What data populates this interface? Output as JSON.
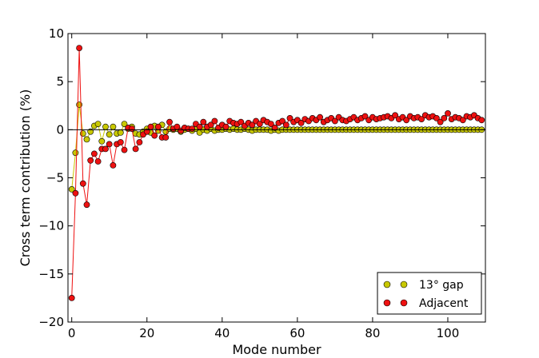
{
  "chart_data": {
    "type": "scatter",
    "xlabel": "Mode number",
    "ylabel": "Cross term contribution (%)",
    "xlim": [
      -1,
      110
    ],
    "ylim": [
      -20,
      10
    ],
    "xticks": [
      0,
      20,
      40,
      60,
      80,
      100
    ],
    "yticks": [
      -20,
      -15,
      -10,
      -5,
      0,
      5,
      10
    ],
    "xtick_labels": [
      "0",
      "20",
      "40",
      "60",
      "80",
      "100"
    ],
    "ytick_labels": [
      "−20",
      "−15",
      "−10",
      "−5",
      "0",
      "5",
      "10"
    ],
    "legend_position": "lower-right",
    "grid": false,
    "series": [
      {
        "name": "13° gap",
        "color": "#c8c800",
        "line": false,
        "x": [
          0,
          1,
          2,
          3,
          4,
          5,
          6,
          7,
          8,
          9,
          10,
          11,
          12,
          13,
          14,
          15,
          16,
          17,
          18,
          19,
          20,
          21,
          22,
          23,
          24,
          25,
          26,
          27,
          28,
          29,
          30,
          31,
          32,
          33,
          34,
          35,
          36,
          37,
          38,
          39,
          40,
          41,
          42,
          43,
          44,
          45,
          46,
          47,
          48,
          49,
          50,
          51,
          52,
          53,
          54,
          55,
          56,
          57,
          58,
          59,
          60,
          61,
          62,
          63,
          64,
          65,
          66,
          67,
          68,
          69,
          70,
          71,
          72,
          73,
          74,
          75,
          76,
          77,
          78,
          79,
          80,
          81,
          82,
          83,
          84,
          85,
          86,
          87,
          88,
          89,
          90,
          91,
          92,
          93,
          94,
          95,
          96,
          97,
          98,
          99,
          100,
          101,
          102,
          103,
          104,
          105,
          106,
          107,
          108,
          109
        ],
        "y": [
          -6.2,
          -2.4,
          2.6,
          -0.4,
          -1.0,
          -0.2,
          0.4,
          0.6,
          -1.2,
          0.3,
          -0.5,
          0.3,
          -0.4,
          -0.3,
          0.6,
          0.1,
          0.3,
          -0.4,
          -0.5,
          -0.2,
          0.1,
          -0.3,
          0.4,
          -0.1,
          0.5,
          -0.2,
          0.1,
          0.0,
          0.1,
          -0.2,
          0.0,
          0.1,
          -0.1,
          0.1,
          -0.3,
          0.0,
          -0.1,
          0.1,
          -0.1,
          0.0,
          0.0,
          0.1,
          0.0,
          0.1,
          0.0,
          0.0,
          0.1,
          0.0,
          -0.1,
          0.0,
          0.0,
          0.0,
          0.0,
          -0.1,
          0.0,
          -0.1,
          0.0,
          0.0,
          0.0,
          0.0,
          0.0,
          0.0,
          0.0,
          0.0,
          0.0,
          0.0,
          0.0,
          0.0,
          0.0,
          0.0,
          0.0,
          0.0,
          0.0,
          0.0,
          0.0,
          0.0,
          0.0,
          0.0,
          0.0,
          0.0,
          0.0,
          0.0,
          0.0,
          0.0,
          0.0,
          0.0,
          0.0,
          0.0,
          0.0,
          0.0,
          0.0,
          0.0,
          0.0,
          0.0,
          0.0,
          0.0,
          0.0,
          0.0,
          0.0,
          0.0,
          0.0,
          0.0,
          0.0,
          0.0,
          0.0,
          0.0,
          0.0,
          0.0,
          0.0,
          0.0
        ]
      },
      {
        "name": "Adjacent",
        "color": "#ee1111",
        "line": true,
        "x": [
          0,
          1,
          2,
          3,
          4,
          5,
          6,
          7,
          8,
          9,
          10,
          11,
          12,
          13,
          14,
          15,
          16,
          17,
          18,
          19,
          20,
          21,
          22,
          23,
          24,
          25,
          26,
          27,
          28,
          29,
          30,
          31,
          32,
          33,
          34,
          35,
          36,
          37,
          38,
          39,
          40,
          41,
          42,
          43,
          44,
          45,
          46,
          47,
          48,
          49,
          50,
          51,
          52,
          53,
          54,
          55,
          56,
          57,
          58,
          59,
          60,
          61,
          62,
          63,
          64,
          65,
          66,
          67,
          68,
          69,
          70,
          71,
          72,
          73,
          74,
          75,
          76,
          77,
          78,
          79,
          80,
          81,
          82,
          83,
          84,
          85,
          86,
          87,
          88,
          89,
          90,
          91,
          92,
          93,
          94,
          95,
          96,
          97,
          98,
          99,
          100,
          101,
          102,
          103,
          104,
          105,
          106,
          107,
          108,
          109
        ],
        "y": [
          -17.5,
          -6.6,
          8.5,
          -5.6,
          -7.8,
          -3.2,
          -2.5,
          -3.3,
          -2.0,
          -2.0,
          -1.5,
          -3.7,
          -1.5,
          -1.3,
          -2.1,
          0.2,
          0.1,
          -2.0,
          -1.3,
          -0.5,
          -0.2,
          0.3,
          -0.6,
          0.3,
          -0.8,
          -0.8,
          0.8,
          0.1,
          0.3,
          -0.1,
          0.2,
          0.1,
          0.1,
          0.6,
          0.3,
          0.8,
          0.3,
          0.5,
          0.9,
          0.2,
          0.5,
          0.3,
          0.9,
          0.7,
          0.6,
          0.8,
          0.4,
          0.7,
          0.5,
          0.9,
          0.6,
          1.0,
          0.8,
          0.6,
          0.2,
          0.7,
          0.9,
          0.5,
          1.2,
          0.8,
          1.0,
          0.7,
          1.1,
          0.9,
          1.2,
          1.0,
          1.3,
          0.8,
          1.0,
          1.2,
          0.9,
          1.3,
          1.0,
          0.9,
          1.1,
          1.3,
          1.0,
          1.2,
          1.4,
          1.0,
          1.3,
          1.1,
          1.2,
          1.3,
          1.4,
          1.2,
          1.5,
          1.1,
          1.3,
          1.0,
          1.4,
          1.2,
          1.3,
          1.1,
          1.5,
          1.3,
          1.4,
          1.2,
          0.8,
          1.2,
          1.7,
          1.1,
          1.3,
          1.2,
          1.0,
          1.4,
          1.3,
          1.5,
          1.2,
          1.0
        ]
      }
    ]
  }
}
